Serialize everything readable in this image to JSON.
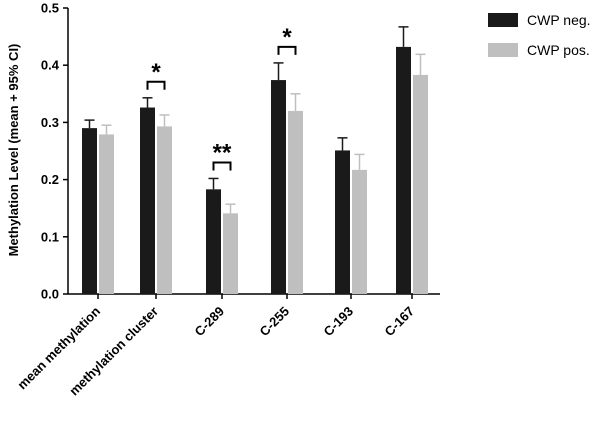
{
  "chart_data": {
    "type": "bar",
    "title": "",
    "xlabel": "",
    "ylabel": "Methylation Level (mean + 95% CI)",
    "ylim": [
      0,
      0.5
    ],
    "yticks": [
      "0.0",
      "0.1",
      "0.2",
      "0.3",
      "0.4",
      "0.5"
    ],
    "grid": false,
    "legend_position": "top-right",
    "categories": [
      "mean methylation",
      "methylation cluster",
      "C-289",
      "C-255",
      "C-193",
      "C-167"
    ],
    "series": [
      {
        "name": "CWP neg.",
        "color": "#1a1a1a",
        "values": [
          0.29,
          0.326,
          0.183,
          0.374,
          0.251,
          0.432
        ],
        "ci_upper": [
          0.304,
          0.343,
          0.202,
          0.404,
          0.273,
          0.467
        ]
      },
      {
        "name": "CWP pos.",
        "color": "#bfbfbf",
        "values": [
          0.279,
          0.293,
          0.141,
          0.32,
          0.217,
          0.383
        ],
        "ci_upper": [
          0.295,
          0.313,
          0.157,
          0.35,
          0.244,
          0.419
        ]
      }
    ],
    "significance": [
      {
        "category": "methylation cluster",
        "label": "*"
      },
      {
        "category": "C-289",
        "label": "**"
      },
      {
        "category": "C-255",
        "label": "*"
      }
    ]
  }
}
